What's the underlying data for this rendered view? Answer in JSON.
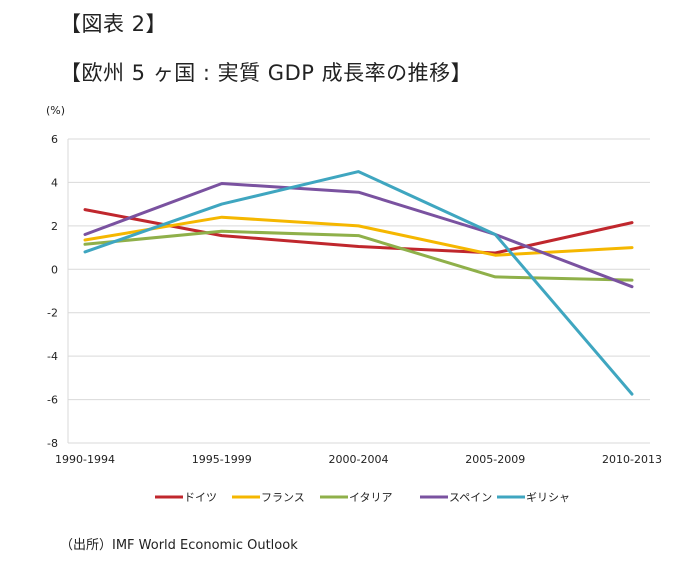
{
  "header": {
    "figure_label": "【図表 2】",
    "title": "【欧州 5 ヶ国 : 実質 GDP 成長率の推移】"
  },
  "source": "（出所）IMF World Economic Outlook",
  "chart_data": {
    "type": "line",
    "title": "【欧州 5 ヶ国 : 実質 GDP 成長率の推移】",
    "ylabel": "(%)",
    "xlabel": "",
    "categories": [
      "1990-1994",
      "1995-1999",
      "2000-2004",
      "2005-2009",
      "2010-2013"
    ],
    "ylim": [
      -8,
      6
    ],
    "yticks": [
      6,
      4,
      2,
      0,
      -2,
      -4,
      -6,
      -8
    ],
    "grid": true,
    "legend_position": "bottom",
    "series": [
      {
        "name": "ドイツ",
        "color": "#C0272D",
        "values": [
          2.75,
          1.55,
          1.05,
          0.75,
          2.15
        ]
      },
      {
        "name": "フランス",
        "color": "#F5B700",
        "values": [
          1.35,
          2.4,
          2.0,
          0.65,
          1.0
        ]
      },
      {
        "name": "イタリア",
        "color": "#8FB04A",
        "values": [
          1.15,
          1.75,
          1.55,
          -0.35,
          -0.5
        ]
      },
      {
        "name": "スペイン",
        "color": "#7A52A0",
        "values": [
          1.6,
          3.95,
          3.55,
          1.6,
          -0.8
        ]
      },
      {
        "name": "ギリシャ",
        "color": "#3FA6C0",
        "values": [
          0.8,
          3.0,
          4.5,
          1.6,
          -5.75
        ]
      }
    ]
  }
}
